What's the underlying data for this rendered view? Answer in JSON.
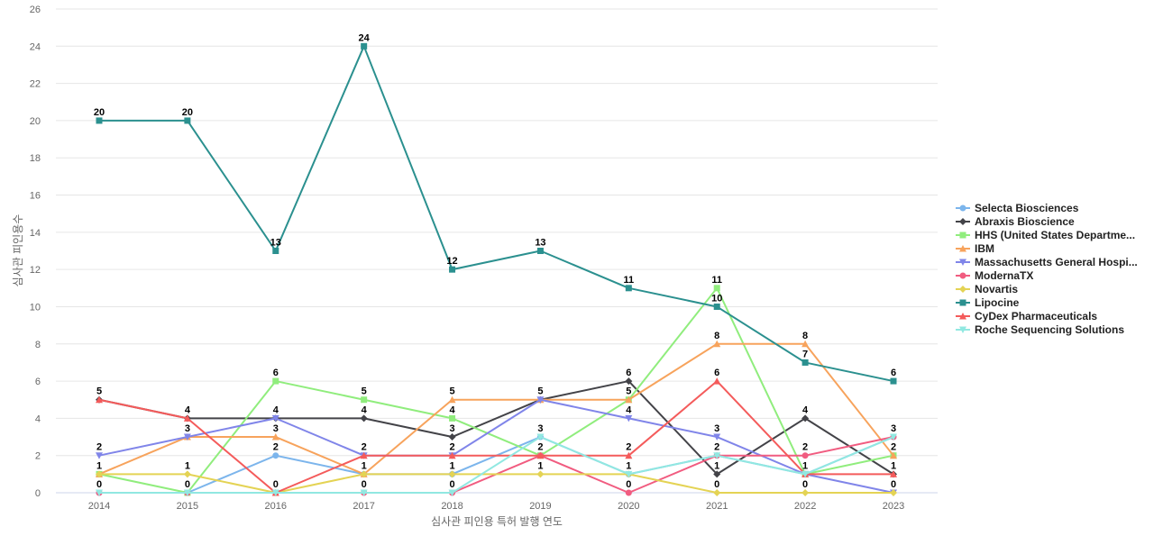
{
  "chart_data": {
    "type": "line",
    "x": [
      "2014",
      "2015",
      "2016",
      "2017",
      "2018",
      "2019",
      "2020",
      "2021",
      "2022",
      "2023"
    ],
    "xlabel": "심사관 피인용 특허 발행 연도",
    "ylabel": "심사관 피인용수",
    "ylim": [
      0,
      26
    ],
    "yticks": [
      0,
      2,
      4,
      6,
      8,
      10,
      12,
      14,
      16,
      18,
      20,
      22,
      24,
      26
    ],
    "grid": true,
    "legend_position": "right",
    "series": [
      {
        "name": "Selecta Biosciences",
        "color": "#7cb5ec",
        "marker": "circle",
        "values": [
          0,
          0,
          2,
          1,
          1,
          3,
          1,
          2,
          1,
          3
        ]
      },
      {
        "name": "Abraxis Bioscience",
        "color": "#434348",
        "marker": "diamond",
        "values": [
          5,
          4,
          4,
          4,
          3,
          5,
          6,
          1,
          4,
          1
        ]
      },
      {
        "name": "HHS (United States Departme...",
        "color": "#90ed7d",
        "marker": "square",
        "values": [
          1,
          0,
          6,
          5,
          4,
          2,
          5,
          11,
          1,
          2
        ]
      },
      {
        "name": "IBM",
        "color": "#f7a35c",
        "marker": "triangle",
        "values": [
          1,
          3,
          3,
          1,
          5,
          5,
          5,
          8,
          8,
          2
        ]
      },
      {
        "name": "Massachusetts General Hospi...",
        "color": "#8085e9",
        "marker": "triangle-down",
        "values": [
          2,
          3,
          4,
          2,
          2,
          5,
          4,
          3,
          1,
          0
        ]
      },
      {
        "name": "ModernaTX",
        "color": "#f15c80",
        "marker": "circle",
        "values": [
          0,
          0,
          0,
          0,
          0,
          2,
          0,
          2,
          2,
          3
        ]
      },
      {
        "name": "Novartis",
        "color": "#e4d354",
        "marker": "diamond",
        "values": [
          1,
          1,
          0,
          1,
          1,
          1,
          1,
          0,
          0,
          0
        ]
      },
      {
        "name": "Lipocine",
        "color": "#2b908f",
        "marker": "square",
        "values": [
          20,
          20,
          13,
          24,
          12,
          13,
          11,
          10,
          7,
          6
        ]
      },
      {
        "name": "CyDex Pharmaceuticals",
        "color": "#f45b5b",
        "marker": "triangle",
        "values": [
          5,
          4,
          0,
          2,
          2,
          2,
          2,
          6,
          1,
          1
        ]
      },
      {
        "name": "Roche Sequencing Solutions",
        "color": "#91e8e1",
        "marker": "triangle-down",
        "values": [
          0,
          0,
          0,
          0,
          0,
          3,
          1,
          2,
          1,
          3
        ]
      }
    ],
    "data_labels": [
      {
        "x": "2014",
        "values": [
          "5",
          "2",
          "1",
          "0"
        ]
      },
      {
        "x": "2015",
        "values": [
          "4",
          "3",
          "1",
          "0"
        ]
      },
      {
        "x": "2016",
        "values": [
          "6",
          "4",
          "3",
          "2",
          "0"
        ]
      },
      {
        "x": "2017",
        "values": [
          "5",
          "4",
          "2",
          "1",
          "0"
        ]
      },
      {
        "x": "2018",
        "values": [
          "5",
          "4",
          "3",
          "2",
          "1",
          "0"
        ]
      },
      {
        "x": "2019",
        "values": [
          "5",
          "3",
          "2",
          "1"
        ]
      },
      {
        "x": "2020",
        "values": [
          "6",
          "5",
          "4",
          "2",
          "1",
          "0"
        ]
      },
      {
        "x": "2021",
        "values": [
          "11",
          "10",
          "8",
          "6",
          "3",
          "2",
          "1",
          "0"
        ]
      },
      {
        "x": "2022",
        "values": [
          "8",
          "7",
          "4",
          "2",
          "1",
          "0"
        ]
      },
      {
        "x": "2023",
        "values": [
          "6",
          "3",
          "2",
          "1",
          "0"
        ]
      }
    ],
    "top_labels": [
      {
        "series": "Lipocine",
        "x": "2014",
        "value": "20"
      },
      {
        "series": "Lipocine",
        "x": "2015",
        "value": "20"
      },
      {
        "series": "Lipocine",
        "x": "2016",
        "value": "13"
      },
      {
        "series": "Lipocine",
        "x": "2017",
        "value": "24"
      },
      {
        "series": "Lipocine",
        "x": "2018",
        "value": "12"
      },
      {
        "series": "Lipocine",
        "x": "2019",
        "value": "13"
      },
      {
        "series": "Lipocine",
        "x": "2020",
        "value": "11"
      }
    ]
  }
}
